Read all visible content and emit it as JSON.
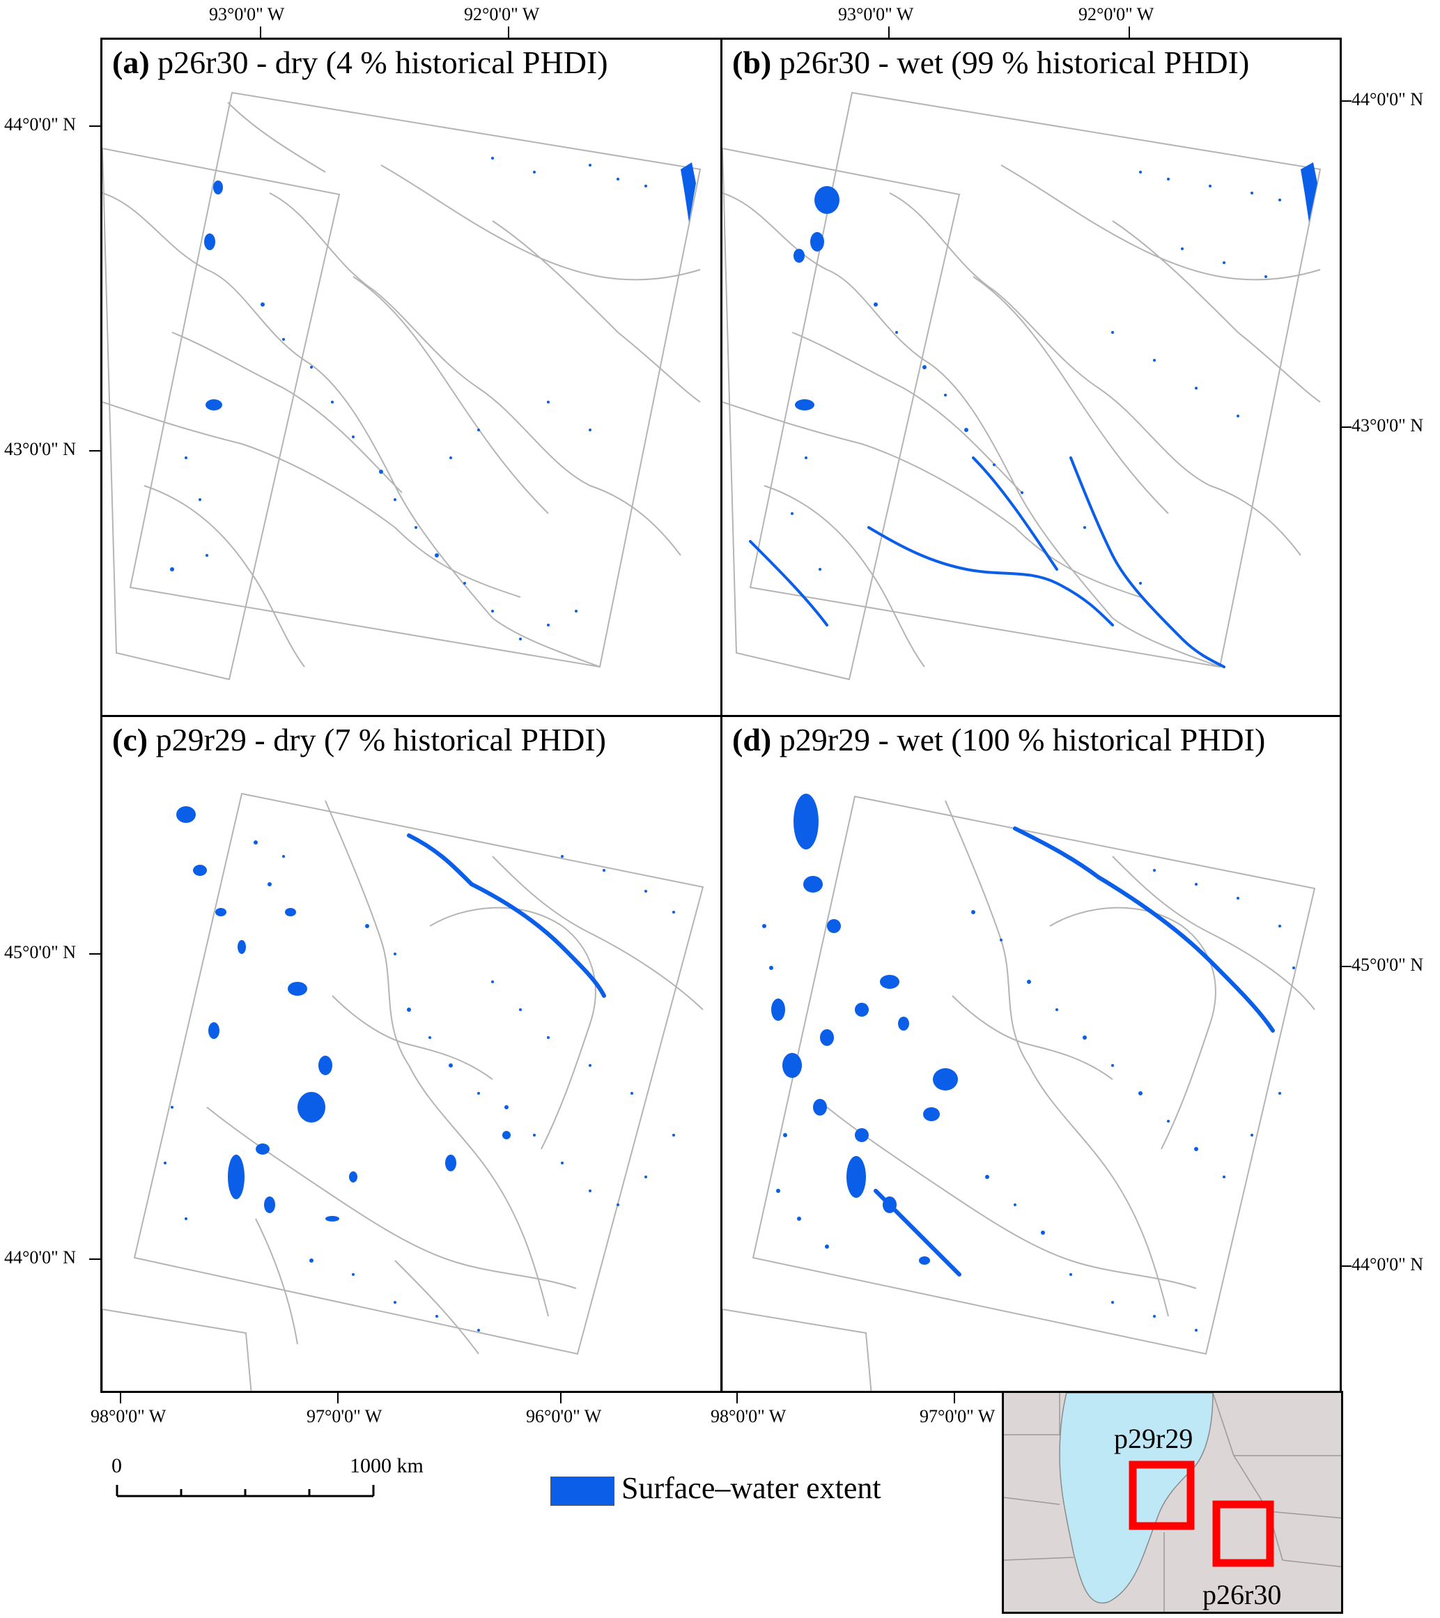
{
  "panels": {
    "a": {
      "letter": "(a)",
      "title": "p26r30 - dry (4 % historical PHDI)"
    },
    "b": {
      "letter": "(b)",
      "title": "p26r30 - wet (99 % historical PHDI)"
    },
    "c": {
      "letter": "(c)",
      "title": "p29r29 - dry (7 % historical PHDI)"
    },
    "d": {
      "letter": "(d)",
      "title": "p29r29 - wet (100 % historical PHDI)"
    }
  },
  "graticule": {
    "top_lon": [
      "93°0'0\" W",
      "92°0'0\" W",
      "93°0'0\" W",
      "92°0'0\" W"
    ],
    "bottom_lon": [
      "98°0'0\" W",
      "97°0'0\" W",
      "96°0'0\" W",
      "98°0'0\" W",
      "97°0'0\" W"
    ],
    "left_lat": [
      "44°0'0\" N",
      "43°0'0\" N",
      "45°0'0\" N",
      "44°0'0\" N"
    ],
    "right_lat": [
      "44°0'0\" N",
      "43°0'0\" N",
      "45°0'0\" N",
      "44°0'0\" N"
    ]
  },
  "scale_bar": {
    "start": "0",
    "end": "1000 km"
  },
  "legend": {
    "label": "Surface–water extent",
    "color": "#0a5ee8"
  },
  "inset": {
    "label_north": "p29r29",
    "label_south": "p26r30",
    "box_color": "#ff0000",
    "land_color": "#dcd6d6",
    "focus_color": "#bfe8f7"
  },
  "colors": {
    "water": "#0a5ee8",
    "boundary": "#b4b4b4"
  }
}
